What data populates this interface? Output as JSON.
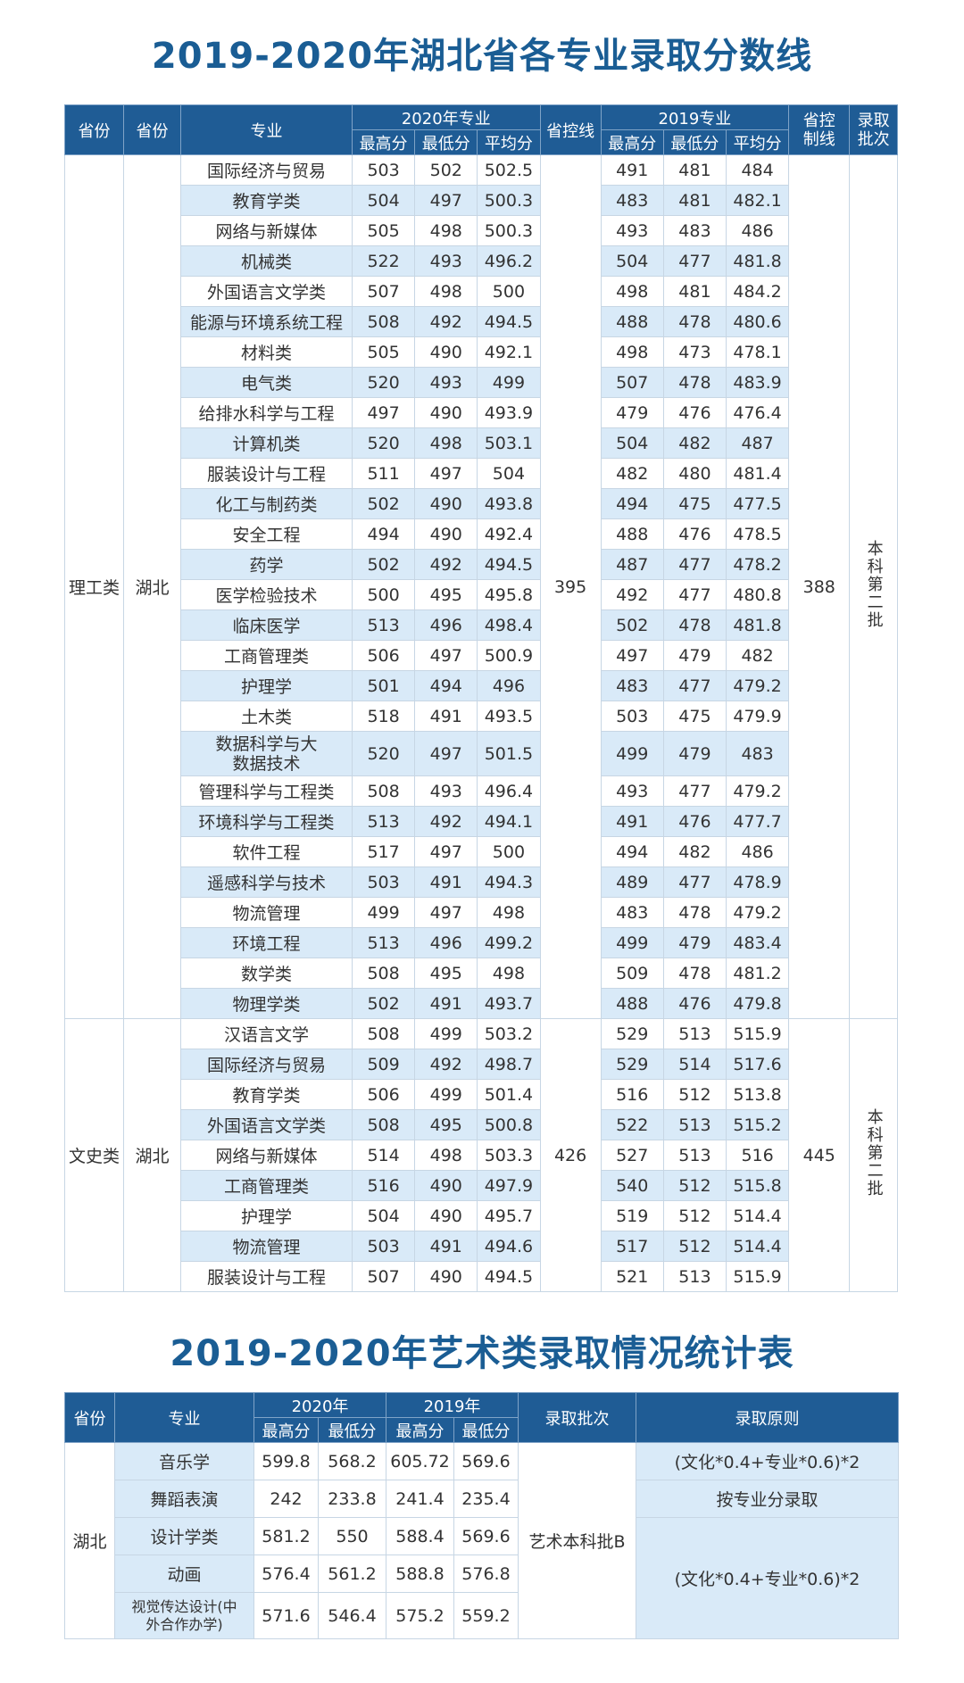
{
  "title1": "2019-2020年湖北省各专业录取分数线",
  "title2": "2019-2020年艺术类录取情况统计表",
  "main_table": {
    "headers": {
      "col1": "省份",
      "col2": "省份",
      "major": "专业",
      "y2020": "2020年专业",
      "control": "省控线",
      "y2019": "2019专业",
      "control2": "省控制线",
      "batch": "录取批次",
      "max": "最高分",
      "min": "最低分",
      "avg": "平均分"
    },
    "groups": [
      {
        "category": "理工类",
        "province": "湖北",
        "control2020": "395",
        "control2019": "388",
        "batch": "本科第二批",
        "rows": [
          [
            "国际经济与贸易",
            "503",
            "502",
            "502.5",
            "491",
            "481",
            "484"
          ],
          [
            "教育学类",
            "504",
            "497",
            "500.3",
            "483",
            "481",
            "482.1"
          ],
          [
            "网络与新媒体",
            "505",
            "498",
            "500.3",
            "493",
            "483",
            "486"
          ],
          [
            "机械类",
            "522",
            "493",
            "496.2",
            "504",
            "477",
            "481.8"
          ],
          [
            "外国语言文学类",
            "507",
            "498",
            "500",
            "498",
            "481",
            "484.2"
          ],
          [
            "能源与环境系统工程",
            "508",
            "492",
            "494.5",
            "488",
            "478",
            "480.6"
          ],
          [
            "材料类",
            "505",
            "490",
            "492.1",
            "498",
            "473",
            "478.1"
          ],
          [
            "电气类",
            "520",
            "493",
            "499",
            "507",
            "478",
            "483.9"
          ],
          [
            "给排水科学与工程",
            "497",
            "490",
            "493.9",
            "479",
            "476",
            "476.4"
          ],
          [
            "计算机类",
            "520",
            "498",
            "503.1",
            "504",
            "482",
            "487"
          ],
          [
            "服装设计与工程",
            "511",
            "497",
            "504",
            "482",
            "480",
            "481.4"
          ],
          [
            "化工与制药类",
            "502",
            "490",
            "493.8",
            "494",
            "475",
            "477.5"
          ],
          [
            "安全工程",
            "494",
            "490",
            "492.4",
            "488",
            "476",
            "478.5"
          ],
          [
            "药学",
            "502",
            "492",
            "494.5",
            "487",
            "477",
            "478.2"
          ],
          [
            "医学检验技术",
            "500",
            "495",
            "495.8",
            "492",
            "477",
            "480.8"
          ],
          [
            "临床医学",
            "513",
            "496",
            "498.4",
            "502",
            "478",
            "481.8"
          ],
          [
            "工商管理类",
            "506",
            "497",
            "500.9",
            "497",
            "479",
            "482"
          ],
          [
            "护理学",
            "501",
            "494",
            "496",
            "483",
            "477",
            "479.2"
          ],
          [
            "土木类",
            "518",
            "491",
            "493.5",
            "503",
            "475",
            "479.9"
          ],
          [
            "数据科学与大数据技术",
            "520",
            "497",
            "501.5",
            "499",
            "479",
            "483"
          ],
          [
            "管理科学与工程类",
            "508",
            "493",
            "496.4",
            "493",
            "477",
            "479.2"
          ],
          [
            "环境科学与工程类",
            "513",
            "492",
            "494.1",
            "491",
            "476",
            "477.7"
          ],
          [
            "软件工程",
            "517",
            "497",
            "500",
            "494",
            "482",
            "486"
          ],
          [
            "遥感科学与技术",
            "503",
            "491",
            "494.3",
            "489",
            "477",
            "478.9"
          ],
          [
            "物流管理",
            "499",
            "497",
            "498",
            "483",
            "478",
            "479.2"
          ],
          [
            "环境工程",
            "513",
            "496",
            "499.2",
            "499",
            "479",
            "483.4"
          ],
          [
            "数学类",
            "508",
            "495",
            "498",
            "509",
            "478",
            "481.2"
          ],
          [
            "物理学类",
            "502",
            "491",
            "493.7",
            "488",
            "476",
            "479.8"
          ]
        ]
      },
      {
        "category": "文史类",
        "province": "湖北",
        "control2020": "426",
        "control2019": "445",
        "batch": "本科第二批",
        "rows": [
          [
            "汉语言文学",
            "508",
            "499",
            "503.2",
            "529",
            "513",
            "515.9"
          ],
          [
            "国际经济与贸易",
            "509",
            "492",
            "498.7",
            "529",
            "514",
            "517.6"
          ],
          [
            "教育学类",
            "506",
            "499",
            "501.4",
            "516",
            "512",
            "513.8"
          ],
          [
            "外国语言文学类",
            "508",
            "495",
            "500.8",
            "522",
            "513",
            "515.2"
          ],
          [
            "网络与新媒体",
            "514",
            "498",
            "503.3",
            "527",
            "513",
            "516"
          ],
          [
            "工商管理类",
            "516",
            "490",
            "497.9",
            "540",
            "512",
            "515.8"
          ],
          [
            "护理学",
            "504",
            "490",
            "495.7",
            "519",
            "512",
            "514.4"
          ],
          [
            "物流管理",
            "503",
            "491",
            "494.6",
            "517",
            "512",
            "514.4"
          ],
          [
            "服装设计与工程",
            "507",
            "490",
            "494.5",
            "521",
            "513",
            "515.9"
          ]
        ]
      }
    ]
  },
  "art_table": {
    "headers": {
      "province": "省份",
      "major": "专业",
      "y2020": "2020年",
      "y2019": "2019年",
      "batch": "录取批次",
      "rule": "录取原则",
      "max": "最高分",
      "min": "最低分"
    },
    "province": "湖北",
    "batch": "艺术本科批B",
    "rows": [
      [
        "音乐学",
        "599.8",
        "568.2",
        "605.72",
        "569.6"
      ],
      [
        "舞蹈表演",
        "242",
        "233.8",
        "241.4",
        "235.4"
      ],
      [
        "设计学类",
        "581.2",
        "550",
        "588.4",
        "569.6"
      ],
      [
        "动画",
        "576.4",
        "561.2",
        "588.8",
        "576.8"
      ],
      [
        "视觉传达设计(中外合作办学)",
        "571.6",
        "546.4",
        "575.2",
        "559.2"
      ]
    ],
    "rules": [
      "(文化*0.4+专业*0.6)*2",
      "按专业分录取",
      "(文化*0.4+专业*0.6)*2"
    ]
  }
}
